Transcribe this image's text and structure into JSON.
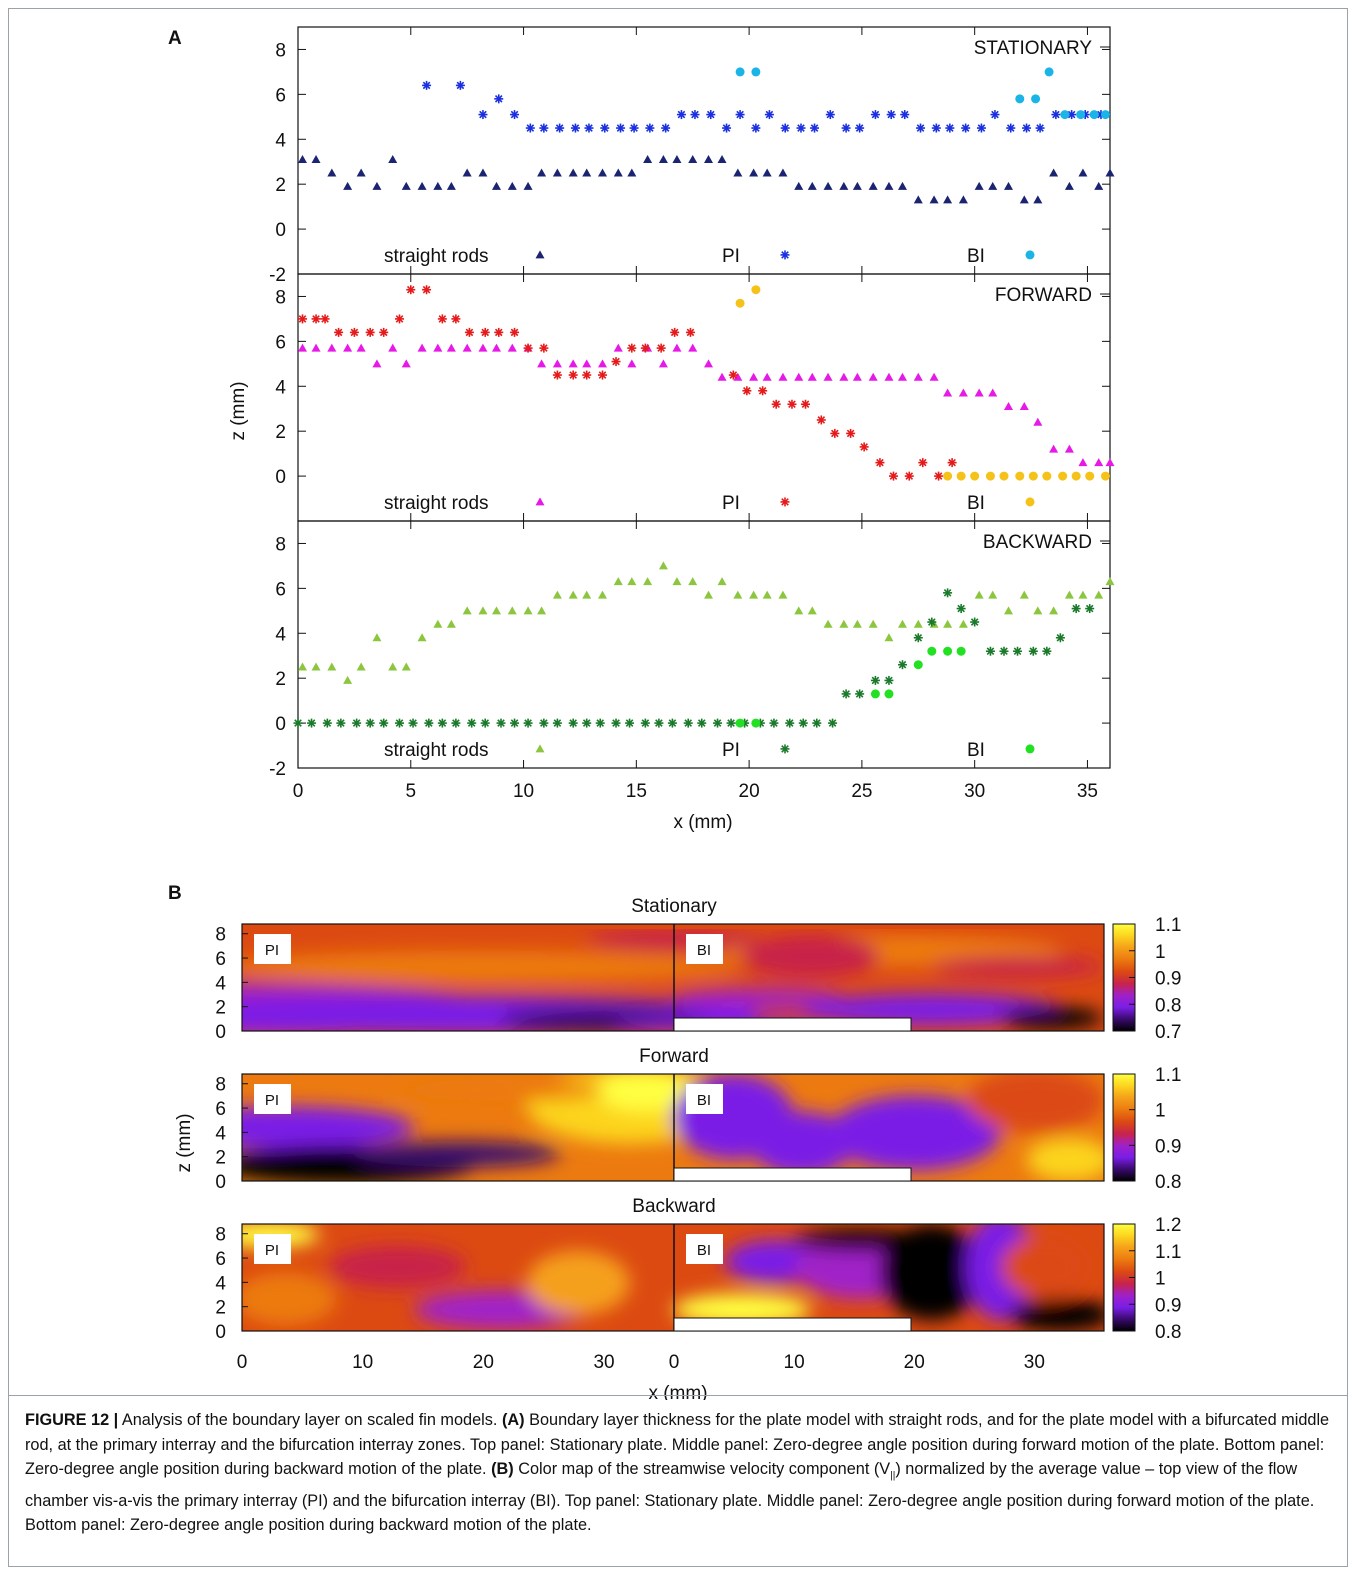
{
  "figure": {
    "panel_a_letter": "A",
    "panel_b_letter": "B"
  },
  "chart_data": [
    {
      "type": "scatter",
      "panel": "A",
      "xlabel": "x (mm)",
      "ylabel": "z (mm)",
      "xlim": [
        0,
        36
      ],
      "ylim": [
        -2,
        9
      ],
      "xticks": [
        "0",
        "5",
        "10",
        "15",
        "20",
        "25",
        "30",
        "35"
      ],
      "yticks": [
        "-2",
        "0",
        "2",
        "4",
        "6",
        "8"
      ],
      "subplots": [
        {
          "title": "STATIONARY",
          "legend": [
            "straight rods",
            "PI",
            "BI"
          ],
          "series": [
            {
              "name": "straight rods",
              "marker": "triangle",
              "color": "#1a2470",
              "x": [
                0.2,
                0.8,
                1.5,
                2.2,
                2.8,
                3.5,
                4.2,
                4.8,
                5.5,
                6.2,
                6.8,
                7.5,
                8.2,
                8.8,
                9.5,
                10.2,
                10.8,
                11.5,
                12.2,
                12.8,
                13.5,
                14.2,
                14.8,
                15.5,
                16.2,
                16.8,
                17.5,
                18.2,
                18.8,
                19.5,
                20.2,
                20.8,
                21.5,
                22.2,
                22.8,
                23.5,
                24.2,
                24.8,
                25.5,
                26.2,
                26.8,
                27.5,
                28.2,
                28.8,
                29.5,
                30.2,
                30.8,
                31.5,
                32.2,
                32.8,
                33.5,
                34.2,
                34.8,
                35.5,
                36.0
              ],
              "y": [
                3.1,
                3.1,
                2.5,
                1.9,
                2.5,
                1.9,
                3.1,
                1.9,
                1.9,
                1.9,
                1.9,
                2.5,
                2.5,
                1.9,
                1.9,
                1.9,
                2.5,
                2.5,
                2.5,
                2.5,
                2.5,
                2.5,
                2.5,
                3.1,
                3.1,
                3.1,
                3.1,
                3.1,
                3.1,
                2.5,
                2.5,
                2.5,
                2.5,
                1.9,
                1.9,
                1.9,
                1.9,
                1.9,
                1.9,
                1.9,
                1.9,
                1.3,
                1.3,
                1.3,
                1.3,
                1.9,
                1.9,
                1.9,
                1.3,
                1.3,
                2.5,
                1.9,
                2.5,
                1.9,
                2.5
              ]
            },
            {
              "name": "PI",
              "marker": "asterisk",
              "color": "#1a30e0",
              "x": [
                5.7,
                7.2,
                8.2,
                8.9,
                9.6,
                10.3,
                10.9,
                11.6,
                12.3,
                12.9,
                13.6,
                14.3,
                14.9,
                15.6,
                16.3,
                17.0,
                17.6,
                18.3,
                19.0,
                19.6,
                20.3,
                20.9,
                21.6,
                22.3,
                22.9,
                23.6,
                24.3,
                24.9,
                25.6,
                26.3,
                26.9,
                27.6,
                28.3,
                28.9,
                29.6,
                30.3,
                30.9,
                31.6,
                32.3,
                32.9,
                33.6,
                34.3,
                34.9,
                35.6
              ],
              "y": [
                6.4,
                6.4,
                5.1,
                5.8,
                5.1,
                4.5,
                4.5,
                4.5,
                4.5,
                4.5,
                4.5,
                4.5,
                4.5,
                4.5,
                4.5,
                5.1,
                5.1,
                5.1,
                4.5,
                5.1,
                4.5,
                5.1,
                4.5,
                4.5,
                4.5,
                5.1,
                4.5,
                4.5,
                5.1,
                5.1,
                5.1,
                4.5,
                4.5,
                4.5,
                4.5,
                4.5,
                5.1,
                4.5,
                4.5,
                4.5,
                5.1,
                5.1,
                5.1,
                5.1
              ]
            },
            {
              "name": "BI",
              "marker": "circle",
              "color": "#1ab4e6",
              "x": [
                19.6,
                20.3,
                32.0,
                32.7,
                33.3,
                34.0,
                34.7,
                35.3,
                35.8
              ],
              "y": [
                7.0,
                7.0,
                5.8,
                5.8,
                7.0,
                5.1,
                5.1,
                5.1,
                5.1
              ]
            }
          ]
        },
        {
          "title": "FORWARD",
          "legend": [
            "straight rods",
            "PI",
            "BI"
          ],
          "series": [
            {
              "name": "straight rods",
              "marker": "triangle",
              "color": "#e619e6",
              "x": [
                0.2,
                0.8,
                1.5,
                2.2,
                2.8,
                3.5,
                4.2,
                4.8,
                5.5,
                6.2,
                6.8,
                7.5,
                8.2,
                8.8,
                9.5,
                10.2,
                10.8,
                11.5,
                12.2,
                12.8,
                13.5,
                14.2,
                14.8,
                15.5,
                16.2,
                16.8,
                17.5,
                18.2,
                18.8,
                19.5,
                20.2,
                20.8,
                21.5,
                22.2,
                22.8,
                23.5,
                24.2,
                24.8,
                25.5,
                26.2,
                26.8,
                27.5,
                28.2,
                28.8,
                29.5,
                30.2,
                30.8,
                31.5,
                32.2,
                32.8,
                33.5,
                34.2,
                34.8,
                35.5,
                36.0
              ],
              "y": [
                5.7,
                5.7,
                5.7,
                5.7,
                5.7,
                5.0,
                5.7,
                5.0,
                5.7,
                5.7,
                5.7,
                5.7,
                5.7,
                5.7,
                5.7,
                5.7,
                5.0,
                5.0,
                5.0,
                5.0,
                5.0,
                5.7,
                5.0,
                5.7,
                5.0,
                5.7,
                5.7,
                5.0,
                4.4,
                4.4,
                4.4,
                4.4,
                4.4,
                4.4,
                4.4,
                4.4,
                4.4,
                4.4,
                4.4,
                4.4,
                4.4,
                4.4,
                4.4,
                3.7,
                3.7,
                3.7,
                3.7,
                3.1,
                3.1,
                2.4,
                1.2,
                1.2,
                0.6,
                0.6,
                0.6
              ]
            },
            {
              "name": "PI",
              "marker": "asterisk",
              "color": "#e61a1a",
              "x": [
                0.2,
                0.8,
                1.2,
                1.8,
                2.5,
                3.2,
                3.8,
                4.5,
                5.0,
                5.7,
                6.4,
                7.0,
                7.6,
                8.3,
                8.9,
                9.6,
                10.2,
                10.9,
                11.5,
                12.2,
                12.8,
                13.5,
                14.1,
                14.8,
                15.4,
                16.1,
                16.7,
                17.4,
                19.3,
                19.9,
                20.6,
                21.2,
                21.9,
                22.5,
                23.2,
                23.8,
                24.5,
                25.1,
                25.8,
                26.4,
                27.1,
                27.7,
                28.4,
                29.0
              ],
              "y": [
                7.0,
                7.0,
                7.0,
                6.4,
                6.4,
                6.4,
                6.4,
                7.0,
                8.3,
                8.3,
                7.0,
                7.0,
                6.4,
                6.4,
                6.4,
                6.4,
                5.7,
                5.7,
                4.5,
                4.5,
                4.5,
                4.5,
                5.1,
                5.7,
                5.7,
                5.7,
                6.4,
                6.4,
                4.5,
                3.8,
                3.8,
                3.2,
                3.2,
                3.2,
                2.5,
                1.9,
                1.9,
                1.3,
                0.6,
                0.0,
                0.0,
                0.6,
                0.0,
                0.6
              ]
            },
            {
              "name": "BI",
              "marker": "circle",
              "color": "#f5c21a",
              "x": [
                19.6,
                20.3,
                28.8,
                29.4,
                30.0,
                30.7,
                31.3,
                32.0,
                32.6,
                33.2,
                33.9,
                34.5,
                35.1,
                35.8
              ],
              "y": [
                7.7,
                8.3,
                0.0,
                0.0,
                0.0,
                0.0,
                0.0,
                0.0,
                0.0,
                0.0,
                0.0,
                0.0,
                0.0,
                0.0
              ]
            }
          ]
        },
        {
          "title": "BACKWARD",
          "legend": [
            "straight rods",
            "PI",
            "BI"
          ],
          "series": [
            {
              "name": "straight rods",
              "marker": "triangle",
              "color": "#8cc63f",
              "x": [
                0.2,
                0.8,
                1.5,
                2.2,
                2.8,
                3.5,
                4.2,
                4.8,
                5.5,
                6.2,
                6.8,
                7.5,
                8.2,
                8.8,
                9.5,
                10.2,
                10.8,
                11.5,
                12.2,
                12.8,
                13.5,
                14.2,
                14.8,
                15.5,
                16.2,
                16.8,
                17.5,
                18.2,
                18.8,
                19.5,
                20.2,
                20.8,
                21.5,
                22.2,
                22.8,
                23.5,
                24.2,
                24.8,
                25.5,
                26.2,
                26.8,
                27.5,
                28.2,
                28.8,
                29.5,
                30.2,
                30.8,
                31.5,
                32.2,
                32.8,
                33.5,
                34.2,
                34.8,
                35.5,
                36.0
              ],
              "y": [
                2.5,
                2.5,
                2.5,
                1.9,
                2.5,
                3.8,
                2.5,
                2.5,
                3.8,
                4.4,
                4.4,
                5.0,
                5.0,
                5.0,
                5.0,
                5.0,
                5.0,
                5.7,
                5.7,
                5.7,
                5.7,
                6.3,
                6.3,
                6.3,
                7.0,
                6.3,
                6.3,
                5.7,
                6.3,
                5.7,
                5.7,
                5.7,
                5.7,
                5.0,
                5.0,
                4.4,
                4.4,
                4.4,
                4.4,
                3.8,
                4.4,
                4.4,
                4.4,
                4.4,
                4.4,
                5.7,
                5.7,
                5.0,
                5.7,
                5.0,
                5.0,
                5.7,
                5.7,
                5.7,
                6.3
              ]
            },
            {
              "name": "PI",
              "marker": "asterisk",
              "color": "#1a7a2a",
              "x": [
                0.0,
                0.6,
                1.3,
                1.9,
                2.6,
                3.2,
                3.8,
                4.5,
                5.1,
                5.8,
                6.4,
                7.0,
                7.7,
                8.3,
                9.0,
                9.6,
                10.2,
                10.9,
                11.5,
                12.2,
                12.8,
                13.4,
                14.1,
                14.7,
                15.4,
                16.0,
                16.6,
                17.3,
                17.9,
                18.6,
                19.2,
                19.8,
                20.5,
                21.1,
                21.8,
                22.4,
                23.0,
                23.7,
                24.3,
                24.9,
                25.6,
                26.2,
                26.8,
                27.5,
                28.1,
                28.8,
                29.4,
                30.0,
                30.7,
                31.3,
                31.9,
                32.6,
                33.2,
                33.8,
                34.5,
                35.1
              ],
              "y": [
                0.0,
                0.0,
                0.0,
                0.0,
                0.0,
                0.0,
                0.0,
                0.0,
                0.0,
                0.0,
                0.0,
                0.0,
                0.0,
                0.0,
                0.0,
                0.0,
                0.0,
                0.0,
                0.0,
                0.0,
                0.0,
                0.0,
                0.0,
                0.0,
                0.0,
                0.0,
                0.0,
                0.0,
                0.0,
                0.0,
                0.0,
                0.0,
                0.0,
                0.0,
                0.0,
                0.0,
                0.0,
                0.0,
                1.3,
                1.3,
                1.9,
                1.9,
                2.6,
                3.8,
                4.5,
                5.8,
                5.1,
                4.5,
                3.2,
                3.2,
                3.2,
                3.2,
                3.2,
                3.8,
                5.1,
                5.1
              ]
            },
            {
              "name": "BI",
              "marker": "circle",
              "color": "#22e022",
              "x": [
                19.6,
                20.3,
                25.6,
                26.2,
                27.5,
                28.1,
                28.8,
                29.4
              ],
              "y": [
                0.0,
                0.0,
                1.3,
                1.3,
                2.6,
                3.2,
                3.2,
                3.2
              ]
            }
          ]
        }
      ]
    },
    {
      "type": "heatmap",
      "panel": "B",
      "xlabel": "x (mm)",
      "ylabel": "z (mm)",
      "yticks": [
        "0",
        "2",
        "4",
        "6",
        "8"
      ],
      "xticks_left": [
        "0",
        "10",
        "20",
        "30"
      ],
      "xticks_right": [
        "0",
        "10",
        "20",
        "30"
      ],
      "zone_labels": [
        "PI",
        "BI"
      ],
      "colormap": [
        "#000000",
        "#3a0a6e",
        "#7a1ee6",
        "#a020c8",
        "#c8244a",
        "#dc4a12",
        "#ec7a10",
        "#f5a01a",
        "#fcd41e",
        "#ffff40"
      ],
      "panels": [
        {
          "title": "Stationary",
          "colorbar": [
            "1.1",
            "1",
            "0.9",
            "0.8",
            "0.7"
          ],
          "range": [
            0.7,
            1.1
          ]
        },
        {
          "title": "Forward",
          "colorbar": [
            "1.1",
            "1",
            "0.9",
            "0.8"
          ],
          "range": [
            0.75,
            1.12
          ]
        },
        {
          "title": "Backward",
          "colorbar": [
            "1.2",
            "1.1",
            "1",
            "0.9",
            "0.8"
          ],
          "range": [
            0.8,
            1.2
          ]
        }
      ]
    }
  ],
  "caption": {
    "label": "FIGURE 12 |",
    "part1": " Analysis of the boundary layer on scaled fin models. ",
    "a": "(A)",
    "part2": " Boundary layer thickness for the plate model with straight rods, and for the plate model with a bifurcated middle rod, at the primary interray and the bifurcation interray zones. Top panel: Stationary plate. Middle panel: Zero-degree angle position during forward motion of the plate. Bottom panel: Zero-degree angle position during backward motion of the plate. ",
    "b": "(B)",
    "part3": " Color map of the streamwise velocity component (V",
    "sub": "||",
    "part4": ") normalized by the average value – top view of the flow chamber vis-a-vis the primary interray (PI) and the bifurcation interray (BI). Top panel: Stationary plate. Middle panel: Zero-degree angle position during forward motion of the plate. Bottom panel: Zero-degree angle position during backward motion of the plate."
  }
}
